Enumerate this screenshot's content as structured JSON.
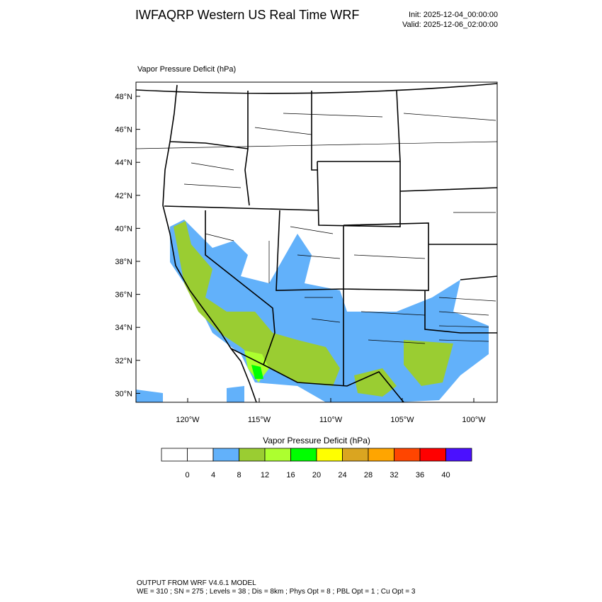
{
  "header": {
    "title": "IWFAQRP Western US Real Time WRF",
    "init": "Init: 2025-12-04_00:00:00",
    "valid": "Valid: 2025-12-06_02:00:00"
  },
  "map": {
    "label": "Vapor Pressure Deficit   (hPa)",
    "lat_labels": [
      "48°N",
      "46°N",
      "44°N",
      "42°N",
      "40°N",
      "38°N",
      "36°N",
      "34°N",
      "32°N",
      "30°N"
    ],
    "lon_labels": [
      "120°W",
      "115°W",
      "110°W",
      "105°W",
      "100°W"
    ]
  },
  "colorbar": {
    "title": "Vapor Pressure Deficit  (hPa)",
    "colors": [
      "#ffffff",
      "#ffffff",
      "#62b1fa",
      "#9acd32",
      "#adff2f",
      "#00ff00",
      "#ffff00",
      "#daa520",
      "#ffa500",
      "#ff4500",
      "#ff0000",
      "#4b10ff"
    ],
    "labels": [
      "0",
      "4",
      "8",
      "12",
      "16",
      "20",
      "24",
      "28",
      "32",
      "36",
      "40"
    ]
  },
  "footer": {
    "line1": "OUTPUT FROM WRF V4.6.1 MODEL",
    "line2": "WE = 310 ; SN = 275 ; Levels = 38 ; Dis = 8km ; Phys Opt = 8 ; PBL Opt = 1 ; Cu Opt = 3"
  }
}
